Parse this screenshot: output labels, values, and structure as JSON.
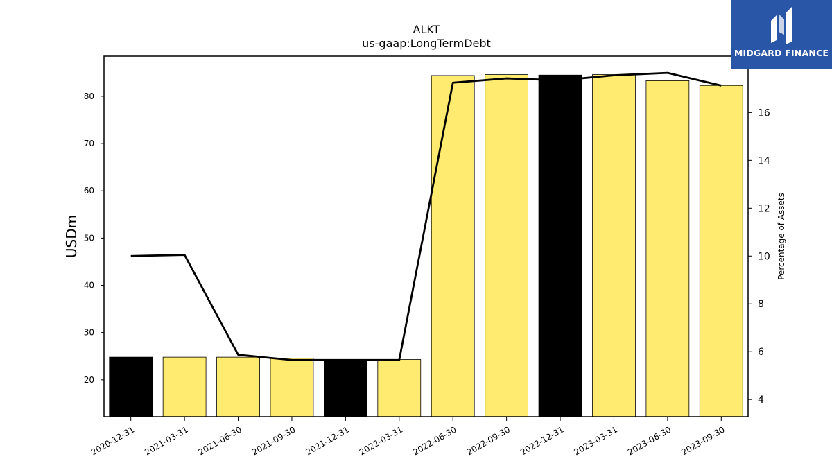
{
  "brand": {
    "name": "MIDGARD FINANCE",
    "background_color": "#2a56a8"
  },
  "chart_data": {
    "type": "bar",
    "title": "ALKT",
    "subtitle": "us-gaap:LongTermDebt",
    "ylabel": "USDm",
    "y2label": "Percentage of Assets",
    "categories": [
      "2020-12-31",
      "2021-03-31",
      "2021-06-30",
      "2021-09-30",
      "2021-12-31",
      "2022-03-31",
      "2022-06-30",
      "2022-09-30",
      "2022-12-31",
      "2023-03-31",
      "2023-06-30",
      "2023-09-30"
    ],
    "ylim": [
      12.2,
      88.5
    ],
    "y2lim": [
      3.28,
      18.36
    ],
    "yticks": [
      20,
      30,
      40,
      50,
      60,
      70,
      80
    ],
    "y2ticks": [
      4,
      6,
      8,
      10,
      12,
      14,
      16
    ],
    "grid": false,
    "legend": "none",
    "series": [
      {
        "type": "bar",
        "axis": "left",
        "values": [
          24.8,
          24.8,
          24.8,
          24.6,
          24.3,
          24.3,
          84.4,
          84.6,
          84.5,
          84.6,
          83.3,
          82.3
        ],
        "colors": [
          "#000000",
          "#ffeb70",
          "#ffeb70",
          "#ffeb70",
          "#000000",
          "#ffeb70",
          "#ffeb70",
          "#ffeb70",
          "#000000",
          "#ffeb70",
          "#ffeb70",
          "#ffeb70"
        ]
      },
      {
        "type": "line",
        "axis": "right",
        "color": "#000000",
        "values": [
          10.0,
          10.05,
          5.87,
          5.65,
          5.65,
          5.65,
          17.25,
          17.43,
          17.35,
          17.56,
          17.66,
          17.13
        ]
      }
    ]
  }
}
